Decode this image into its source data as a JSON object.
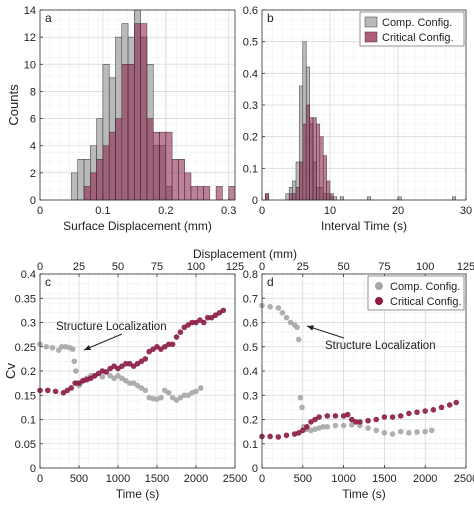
{
  "chart_data": [
    {
      "type": "bar",
      "panel_label": "a",
      "xlabel": "Surface Displacement (mm)",
      "ylabel": "Counts",
      "xlim": [
        0,
        0.31
      ],
      "ylim": [
        0,
        14
      ],
      "xticks": [
        0,
        0.1,
        0.2,
        0.3
      ],
      "yticks": [
        0,
        2,
        4,
        6,
        8,
        10,
        12,
        14
      ],
      "grid": true,
      "bin_width": 0.01,
      "series": [
        {
          "name": "Comp. Config.",
          "color": "#b3b3b3",
          "x": [
            0.055,
            0.065,
            0.075,
            0.085,
            0.095,
            0.105,
            0.115,
            0.125,
            0.135,
            0.145,
            0.155,
            0.165,
            0.175,
            0.185,
            0.195,
            0.205
          ],
          "values": [
            2,
            3,
            3,
            4,
            6,
            10,
            9,
            12,
            13,
            12,
            14,
            12,
            10,
            4,
            4,
            1
          ]
        },
        {
          "name": "Critical Config.",
          "color": "#8b1a45",
          "x": [
            0.075,
            0.085,
            0.095,
            0.105,
            0.115,
            0.125,
            0.135,
            0.145,
            0.155,
            0.165,
            0.175,
            0.185,
            0.195,
            0.205,
            0.215,
            0.225,
            0.235,
            0.245,
            0.255,
            0.265,
            0.275,
            0.285,
            0.295,
            0.305
          ],
          "values": [
            1,
            2,
            3,
            4,
            5,
            6,
            10,
            10,
            13,
            13,
            6,
            5,
            5,
            5,
            3,
            3,
            2,
            1,
            1,
            1,
            0,
            1,
            0,
            1
          ]
        }
      ]
    },
    {
      "type": "bar",
      "panel_label": "b",
      "xlabel": "Interval Time (s)",
      "ylabel": "",
      "xlim": [
        0,
        30
      ],
      "ylim": [
        0,
        0.6
      ],
      "xticks": [
        0,
        10,
        20,
        30
      ],
      "yticks": [
        0,
        0.1,
        0.2,
        0.3,
        0.4,
        0.5,
        0.6
      ],
      "grid": true,
      "bin_width": 0.5,
      "legend": "top-right",
      "series": [
        {
          "name": "Comp. Config.",
          "color": "#b3b3b3",
          "x": [
            0.75,
            3.75,
            4.25,
            4.75,
            5.25,
            5.75,
            6.25,
            6.75,
            7.25,
            7.75,
            8.25,
            8.75,
            9.25,
            9.75,
            10.25,
            10.75,
            11.75,
            15.75,
            20.25,
            28.25
          ],
          "values": [
            0.02,
            0.02,
            0.04,
            0.06,
            0.12,
            0.36,
            0.5,
            0.42,
            0.24,
            0.12,
            0.04,
            0.04,
            0.02,
            0.02,
            0.01,
            0.01,
            0.01,
            0.01,
            0.01,
            0.01
          ]
        },
        {
          "name": "Critical Config.",
          "color": "#8b1a45",
          "x": [
            0.75,
            3.75,
            4.25,
            4.75,
            5.25,
            5.75,
            6.25,
            6.75,
            7.25,
            7.75,
            8.25,
            8.75,
            9.25,
            9.75,
            10.25
          ],
          "values": [
            0.02,
            0.0,
            0.02,
            0.02,
            0.04,
            0.12,
            0.24,
            0.3,
            0.26,
            0.26,
            0.24,
            0.2,
            0.14,
            0.06,
            0.02
          ]
        }
      ]
    },
    {
      "type": "scatter",
      "panel_label": "c",
      "xlabel": "Time (s)",
      "ylabel": "Cv",
      "top_xlabel": "Displacement (mm)",
      "xlim": [
        0,
        2500
      ],
      "ylim": [
        0,
        0.4
      ],
      "xticks": [
        0,
        500,
        1000,
        1500,
        2000,
        2500
      ],
      "top_xticks": [
        0,
        25,
        50,
        75,
        100,
        125
      ],
      "yticks": [
        0,
        0.05,
        0.1,
        0.15,
        0.2,
        0.25,
        0.3,
        0.35,
        0.4
      ],
      "grid": true,
      "annotation": "Structure Localization",
      "series": [
        {
          "name": "Comp. Config.",
          "color": "#a6a6a6",
          "points": [
            [
              0,
              0.255
            ],
            [
              80,
              0.25
            ],
            [
              160,
              0.248
            ],
            [
              240,
              0.243
            ],
            [
              280,
              0.25
            ],
            [
              330,
              0.25
            ],
            [
              380,
              0.248
            ],
            [
              420,
              0.245
            ],
            [
              440,
              0.22
            ],
            [
              460,
              0.2
            ],
            [
              480,
              0.175
            ],
            [
              500,
              0.17
            ],
            [
              520,
              0.175
            ],
            [
              560,
              0.18
            ],
            [
              600,
              0.185
            ],
            [
              650,
              0.19
            ],
            [
              700,
              0.19
            ],
            [
              800,
              0.188
            ],
            [
              900,
              0.19
            ],
            [
              950,
              0.185
            ],
            [
              1000,
              0.19
            ],
            [
              1050,
              0.185
            ],
            [
              1100,
              0.18
            ],
            [
              1150,
              0.175
            ],
            [
              1200,
              0.175
            ],
            [
              1250,
              0.17
            ],
            [
              1300,
              0.165
            ],
            [
              1350,
              0.16
            ],
            [
              1400,
              0.145
            ],
            [
              1450,
              0.143
            ],
            [
              1500,
              0.142
            ],
            [
              1550,
              0.145
            ],
            [
              1600,
              0.16
            ],
            [
              1650,
              0.155
            ],
            [
              1700,
              0.145
            ],
            [
              1750,
              0.14
            ],
            [
              1800,
              0.145
            ],
            [
              1850,
              0.15
            ],
            [
              1900,
              0.15
            ],
            [
              1950,
              0.155
            ],
            [
              2000,
              0.158
            ],
            [
              2060,
              0.165
            ]
          ]
        },
        {
          "name": "Critical Config.",
          "color": "#8b1a45",
          "points": [
            [
              0,
              0.16
            ],
            [
              100,
              0.16
            ],
            [
              200,
              0.158
            ],
            [
              300,
              0.155
            ],
            [
              350,
              0.16
            ],
            [
              400,
              0.165
            ],
            [
              450,
              0.175
            ],
            [
              500,
              0.175
            ],
            [
              550,
              0.18
            ],
            [
              600,
              0.182
            ],
            [
              650,
              0.185
            ],
            [
              700,
              0.19
            ],
            [
              750,
              0.195
            ],
            [
              800,
              0.2
            ],
            [
              850,
              0.198
            ],
            [
              900,
              0.205
            ],
            [
              950,
              0.21
            ],
            [
              1000,
              0.205
            ],
            [
              1050,
              0.21
            ],
            [
              1100,
              0.215
            ],
            [
              1150,
              0.215
            ],
            [
              1200,
              0.21
            ],
            [
              1250,
              0.215
            ],
            [
              1300,
              0.22
            ],
            [
              1350,
              0.225
            ],
            [
              1400,
              0.24
            ],
            [
              1450,
              0.245
            ],
            [
              1500,
              0.25
            ],
            [
              1550,
              0.245
            ],
            [
              1600,
              0.25
            ],
            [
              1650,
              0.255
            ],
            [
              1700,
              0.255
            ],
            [
              1750,
              0.27
            ],
            [
              1800,
              0.28
            ],
            [
              1850,
              0.29
            ],
            [
              1900,
              0.295
            ],
            [
              1950,
              0.3
            ],
            [
              2000,
              0.3
            ],
            [
              2050,
              0.305
            ],
            [
              2100,
              0.3
            ],
            [
              2150,
              0.31
            ],
            [
              2200,
              0.31
            ],
            [
              2250,
              0.315
            ],
            [
              2300,
              0.32
            ],
            [
              2350,
              0.325
            ]
          ]
        }
      ]
    },
    {
      "type": "scatter",
      "panel_label": "d",
      "xlabel": "Time (s)",
      "ylabel": "",
      "top_xlabel": "Displacement (mm)",
      "xlim": [
        0,
        2500
      ],
      "ylim": [
        0,
        0.8
      ],
      "xticks": [
        0,
        500,
        1000,
        1500,
        2000,
        2500
      ],
      "top_xticks": [
        0,
        25,
        50,
        75,
        100,
        125
      ],
      "yticks": [
        0,
        0.1,
        0.2,
        0.3,
        0.4,
        0.5,
        0.6,
        0.7,
        0.8
      ],
      "grid": true,
      "legend": "top-right",
      "annotation": "Structure Localization",
      "series": [
        {
          "name": "Comp. Config.",
          "color": "#a6a6a6",
          "points": [
            [
              0,
              0.67
            ],
            [
              100,
              0.665
            ],
            [
              200,
              0.66
            ],
            [
              250,
              0.64
            ],
            [
              300,
              0.62
            ],
            [
              350,
              0.6
            ],
            [
              400,
              0.59
            ],
            [
              430,
              0.58
            ],
            [
              450,
              0.53
            ],
            [
              470,
              0.29
            ],
            [
              490,
              0.25
            ],
            [
              510,
              0.17
            ],
            [
              550,
              0.16
            ],
            [
              600,
              0.155
            ],
            [
              650,
              0.16
            ],
            [
              700,
              0.165
            ],
            [
              750,
              0.17
            ],
            [
              800,
              0.17
            ],
            [
              900,
              0.175
            ],
            [
              1000,
              0.175
            ],
            [
              1100,
              0.178
            ],
            [
              1200,
              0.175
            ],
            [
              1300,
              0.165
            ],
            [
              1400,
              0.155
            ],
            [
              1500,
              0.145
            ],
            [
              1600,
              0.14
            ],
            [
              1700,
              0.15
            ],
            [
              1800,
              0.145
            ],
            [
              1900,
              0.148
            ],
            [
              2000,
              0.15
            ],
            [
              2080,
              0.155
            ]
          ]
        },
        {
          "name": "Critical Config.",
          "color": "#8b1a45",
          "points": [
            [
              0,
              0.13
            ],
            [
              100,
              0.13
            ],
            [
              200,
              0.128
            ],
            [
              300,
              0.135
            ],
            [
              400,
              0.14
            ],
            [
              450,
              0.145
            ],
            [
              500,
              0.155
            ],
            [
              550,
              0.17
            ],
            [
              600,
              0.19
            ],
            [
              650,
              0.2
            ],
            [
              700,
              0.21
            ],
            [
              800,
              0.215
            ],
            [
              900,
              0.215
            ],
            [
              1000,
              0.215
            ],
            [
              1050,
              0.22
            ],
            [
              1100,
              0.2
            ],
            [
              1150,
              0.19
            ],
            [
              1200,
              0.19
            ],
            [
              1300,
              0.195
            ],
            [
              1400,
              0.2
            ],
            [
              1500,
              0.21
            ],
            [
              1600,
              0.21
            ],
            [
              1700,
              0.215
            ],
            [
              1800,
              0.225
            ],
            [
              1900,
              0.23
            ],
            [
              2000,
              0.235
            ],
            [
              2100,
              0.24
            ],
            [
              2200,
              0.25
            ],
            [
              2300,
              0.26
            ],
            [
              2380,
              0.27
            ]
          ]
        }
      ]
    }
  ]
}
